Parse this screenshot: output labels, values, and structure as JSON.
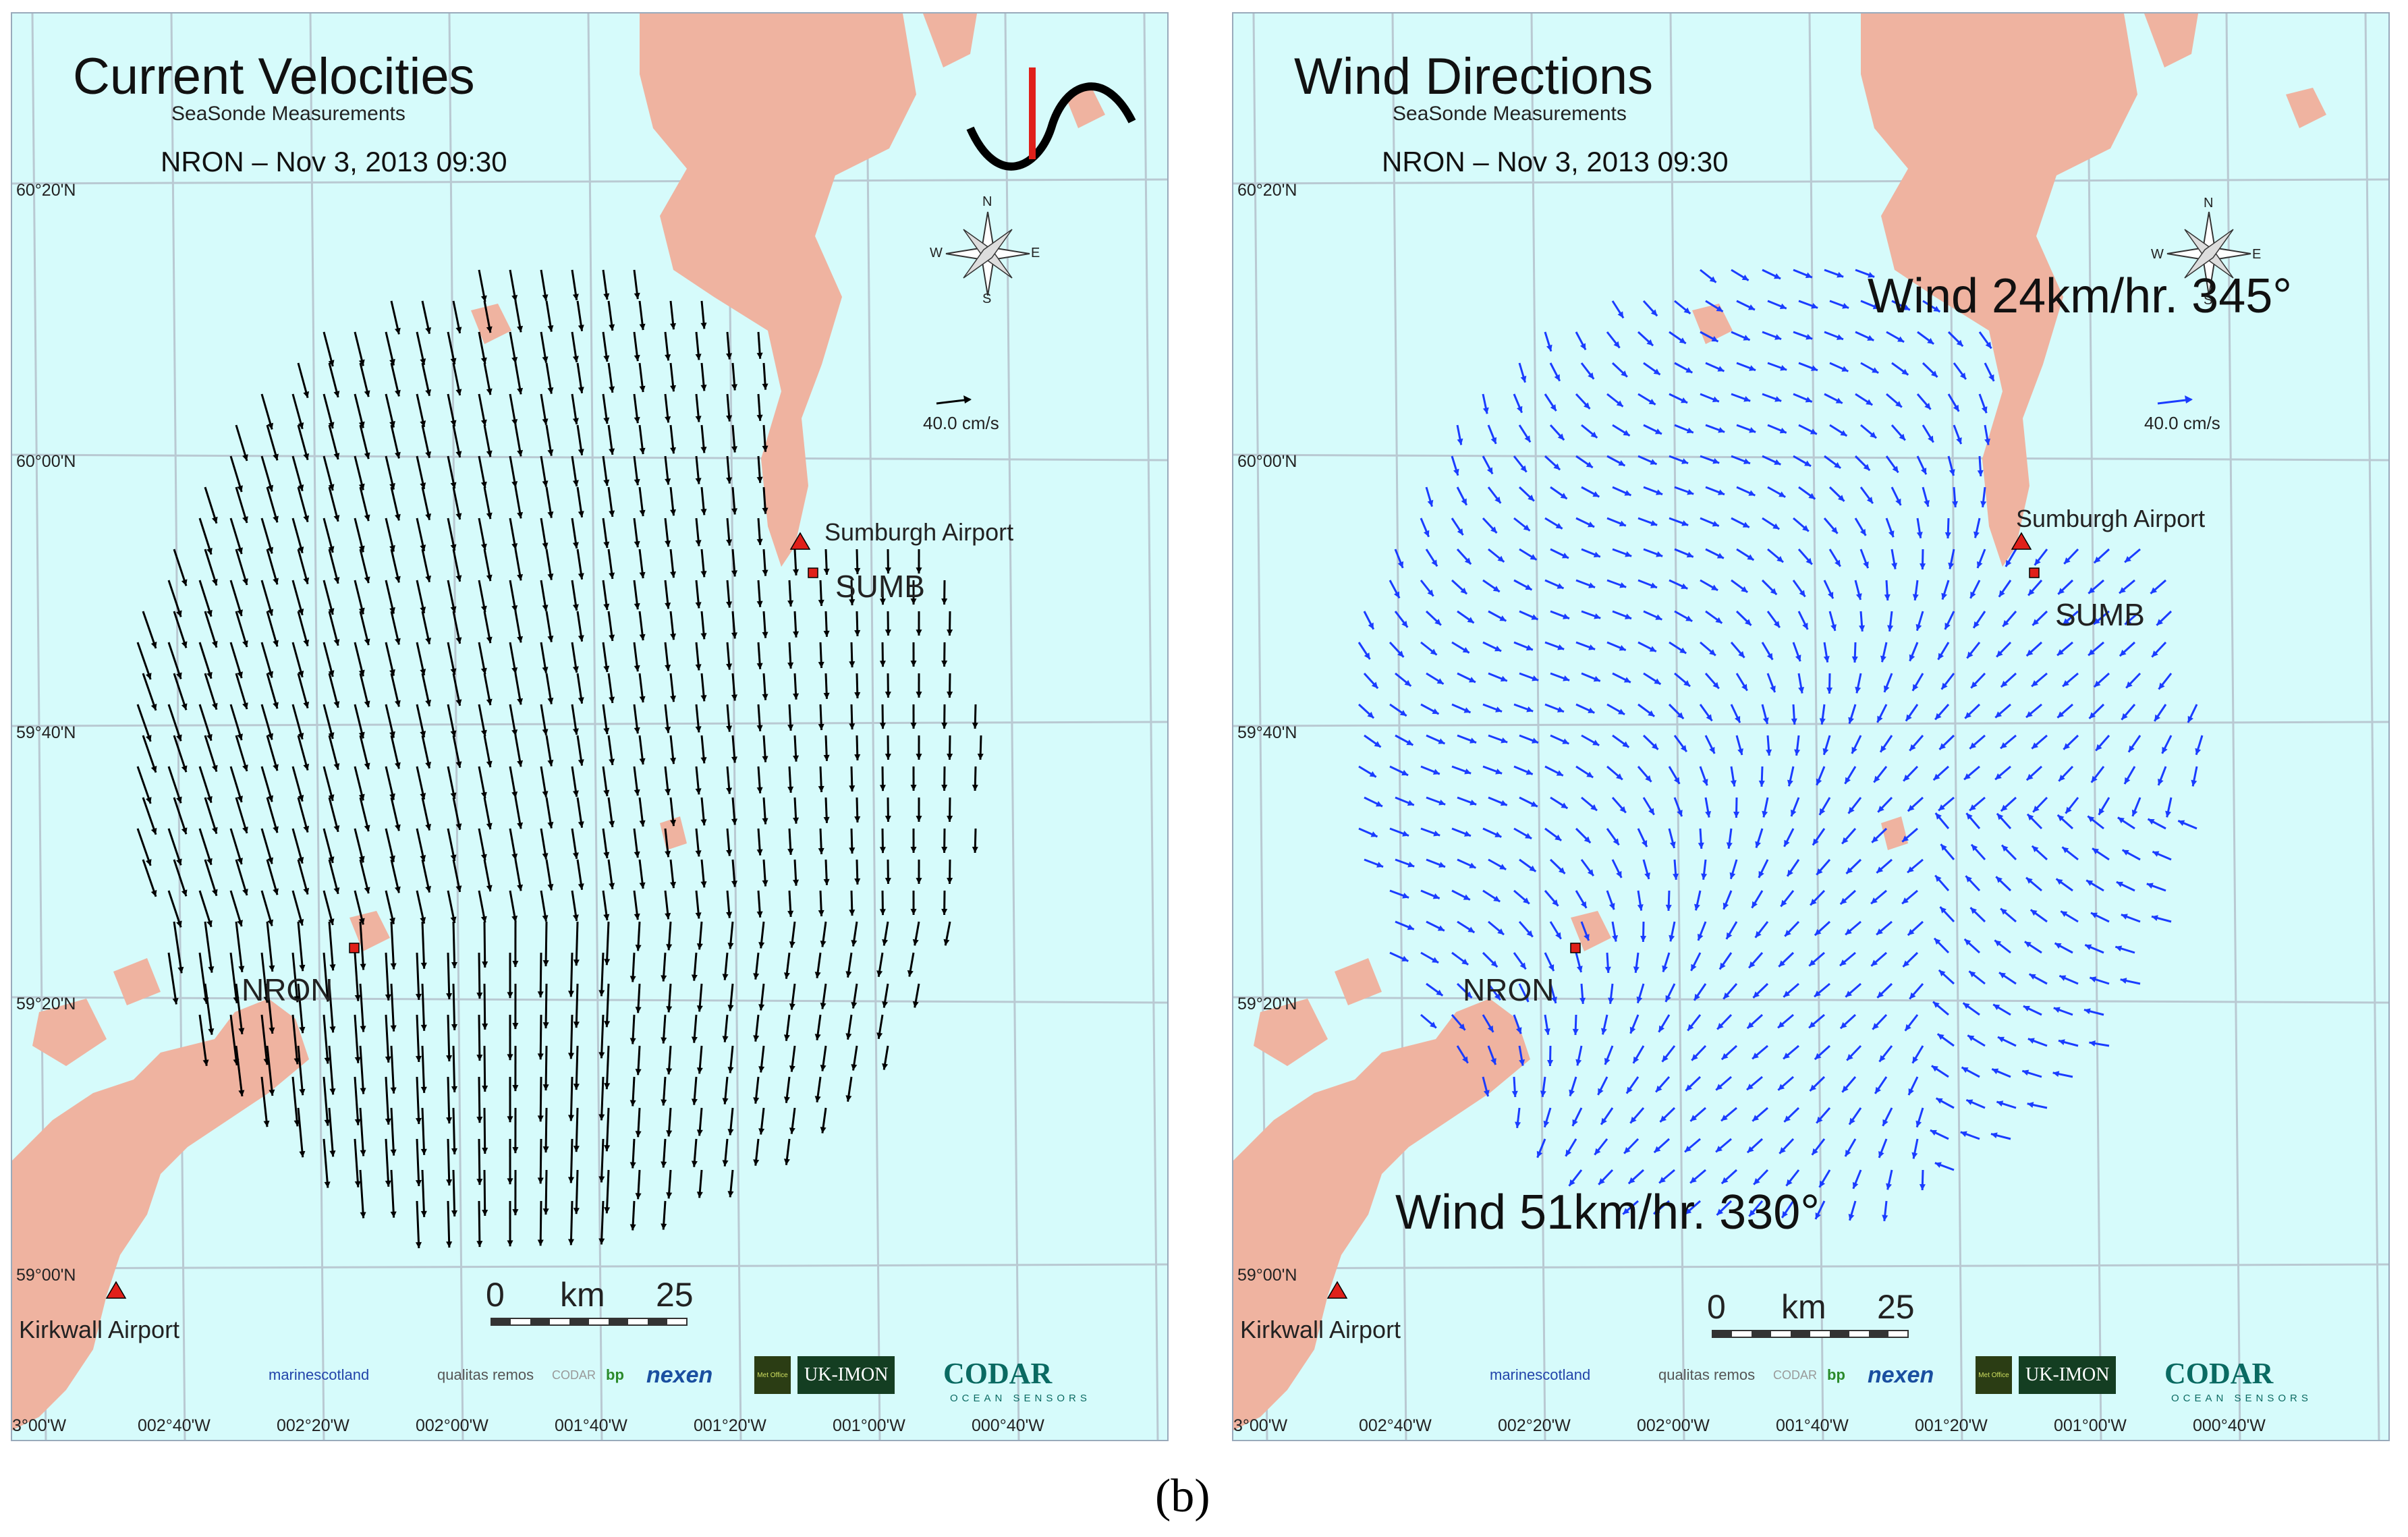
{
  "caption": "(b)",
  "left": {
    "title": "Current Velocities",
    "subtitle": "SeaSonde Measurements",
    "timestamp": "NRON – Nov 3, 2013 09:30",
    "reference_vector": "40.0 cm/s",
    "arrow_color": "#000000",
    "sites": {
      "north_site": "SUMB",
      "south_site": "NRON"
    },
    "airports": {
      "north": "Sumburgh Airport",
      "south": "Kirkwall Airport"
    },
    "wind_notes": []
  },
  "right": {
    "title": "Wind Directions",
    "subtitle": "SeaSonde Measurements",
    "timestamp": "NRON – Nov 3, 2013 09:30",
    "reference_vector": "40.0 cm/s",
    "arrow_color": "#1a3cff",
    "sites": {
      "north_site": "SUMB",
      "south_site": "NRON"
    },
    "airports": {
      "north": "Sumburgh Airport",
      "south": "Kirkwall Airport"
    },
    "wind_notes": [
      "Wind 24km/hr. 345°",
      "Wind 51km/hr. 330°"
    ]
  },
  "axes": {
    "latitudes": [
      "60°20'N",
      "60°00'N",
      "59°40'N",
      "59°20'N",
      "59°00'N"
    ],
    "longitudes": [
      "3°00'W",
      "002°40'W",
      "002°20'W",
      "002°00'W",
      "001°40'W",
      "001°20'W",
      "001°00'W",
      "000°40'W"
    ]
  },
  "scale_bar": {
    "start": "0",
    "unit": "km",
    "end": "25"
  },
  "compass": {
    "n": "N",
    "s": "S",
    "e": "E",
    "w": "W"
  },
  "logos": [
    "marinescotland",
    "qualitas remos",
    "CODAR",
    "bp",
    "nexen",
    "Met Office",
    "UK-IMON"
  ],
  "codar_logo": {
    "name": "CODAR",
    "tagline": "OCEAN SENSORS"
  },
  "colors": {
    "sea": "#d6fbfb",
    "land": "#efb3a0",
    "grid": "#b9c9d2",
    "site_marker": "#e0201a",
    "inset_curve": "#000000",
    "inset_bar": "#e0201a"
  }
}
